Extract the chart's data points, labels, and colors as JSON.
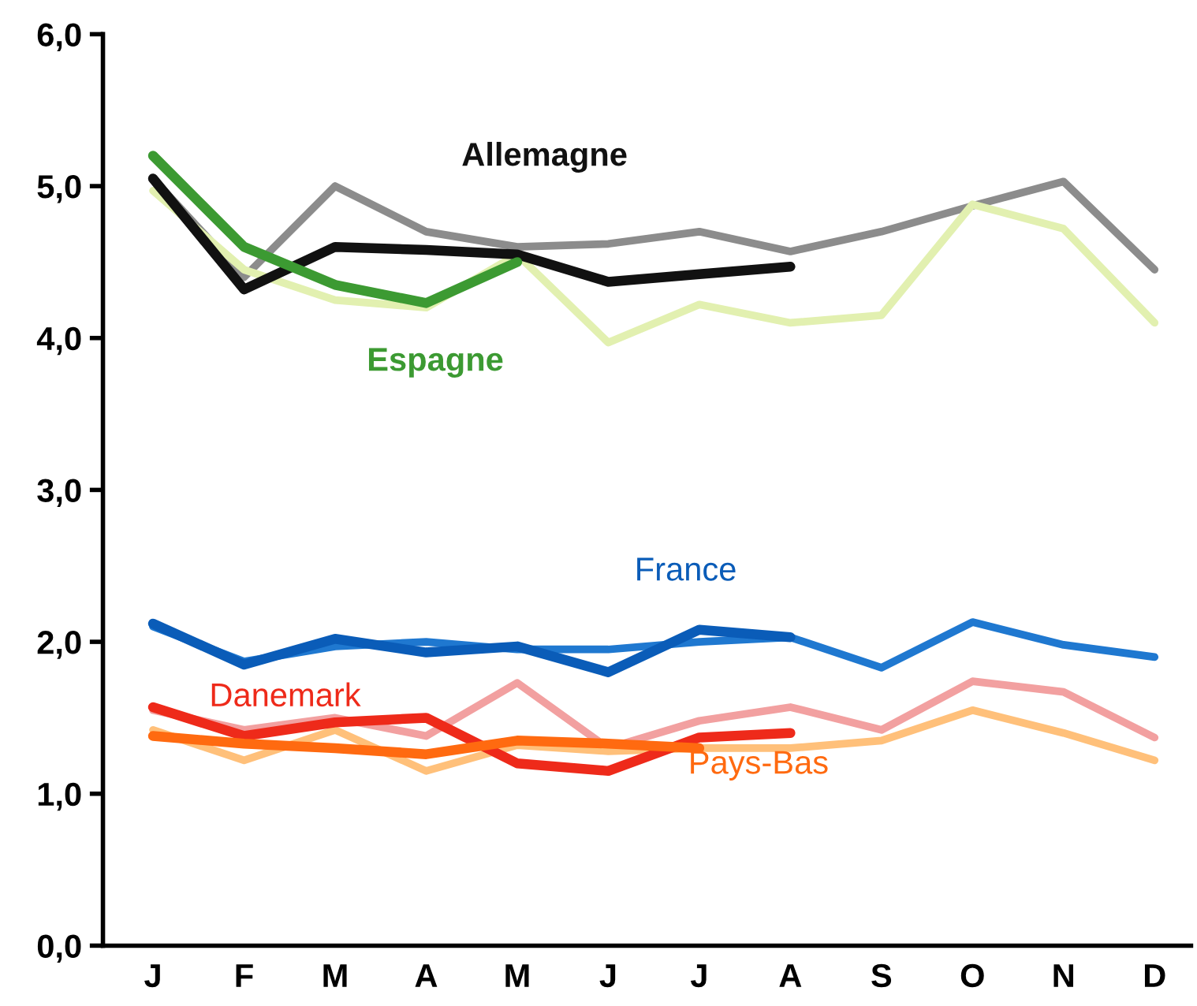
{
  "chart_data": {
    "type": "line",
    "categories": [
      "J",
      "F",
      "M",
      "A",
      "M",
      "J",
      "J",
      "A",
      "S",
      "O",
      "N",
      "D"
    ],
    "ylim": [
      0,
      6
    ],
    "yticks": [
      {
        "value": 0,
        "label": "0,0"
      },
      {
        "value": 1,
        "label": "1,0"
      },
      {
        "value": 2,
        "label": "2,0"
      },
      {
        "value": 3,
        "label": "3,0"
      },
      {
        "value": 4,
        "label": "4,0"
      },
      {
        "value": 5,
        "label": "5,0"
      },
      {
        "value": 6,
        "label": "6,0"
      }
    ],
    "grid": false,
    "legend": false,
    "marker": "none",
    "line_style": "solid",
    "series": [
      {
        "color": "#8c8c8c",
        "values": [
          5.05,
          4.4,
          5.0,
          4.7,
          4.6,
          4.62,
          4.7,
          4.57,
          4.7,
          4.87,
          5.03,
          4.45
        ]
      },
      {
        "color": "#e2f0b0",
        "values": [
          4.97,
          4.45,
          4.25,
          4.2,
          4.55,
          3.97,
          4.22,
          4.1,
          4.15,
          4.88,
          4.72,
          4.1
        ]
      },
      {
        "color": "#1f78d0",
        "values": [
          2.1,
          1.87,
          1.97,
          2.0,
          1.95,
          1.95,
          2.0,
          2.03,
          1.83,
          2.13,
          1.98,
          1.9
        ]
      },
      {
        "color": "#f2a0a0",
        "values": [
          1.55,
          1.42,
          1.5,
          1.38,
          1.73,
          1.3,
          1.48,
          1.57,
          1.42,
          1.74,
          1.67,
          1.37
        ]
      },
      {
        "color": "#ffc07a",
        "values": [
          1.42,
          1.22,
          1.42,
          1.15,
          1.32,
          1.28,
          1.3,
          1.3,
          1.35,
          1.55,
          1.4,
          1.22
        ]
      },
      {
        "name": "Allemagne",
        "color": "#111111",
        "values": [
          5.05,
          4.32,
          4.6,
          4.58,
          4.55,
          4.37,
          4.42,
          4.47,
          null,
          null,
          null,
          null
        ]
      },
      {
        "name": "Espagne",
        "color": "#3c9a32",
        "values": [
          5.2,
          4.6,
          4.35,
          4.23,
          4.5,
          null,
          null,
          null,
          null,
          null,
          null,
          null
        ]
      },
      {
        "name": "France",
        "color": "#0a5cb8",
        "values": [
          2.12,
          1.85,
          2.02,
          1.93,
          1.97,
          1.8,
          2.08,
          2.03,
          null,
          null,
          null,
          null
        ]
      },
      {
        "name": "Danemark",
        "color": "#ee2a1a",
        "values": [
          1.57,
          1.38,
          1.47,
          1.5,
          1.2,
          1.15,
          1.37,
          1.4,
          null,
          null,
          null,
          null
        ]
      },
      {
        "name": "Pays-Bas",
        "color": "#ff6a10",
        "values": [
          1.38,
          1.33,
          1.3,
          1.26,
          1.35,
          1.33,
          1.3,
          null,
          null,
          null,
          null,
          null
        ]
      }
    ]
  }
}
